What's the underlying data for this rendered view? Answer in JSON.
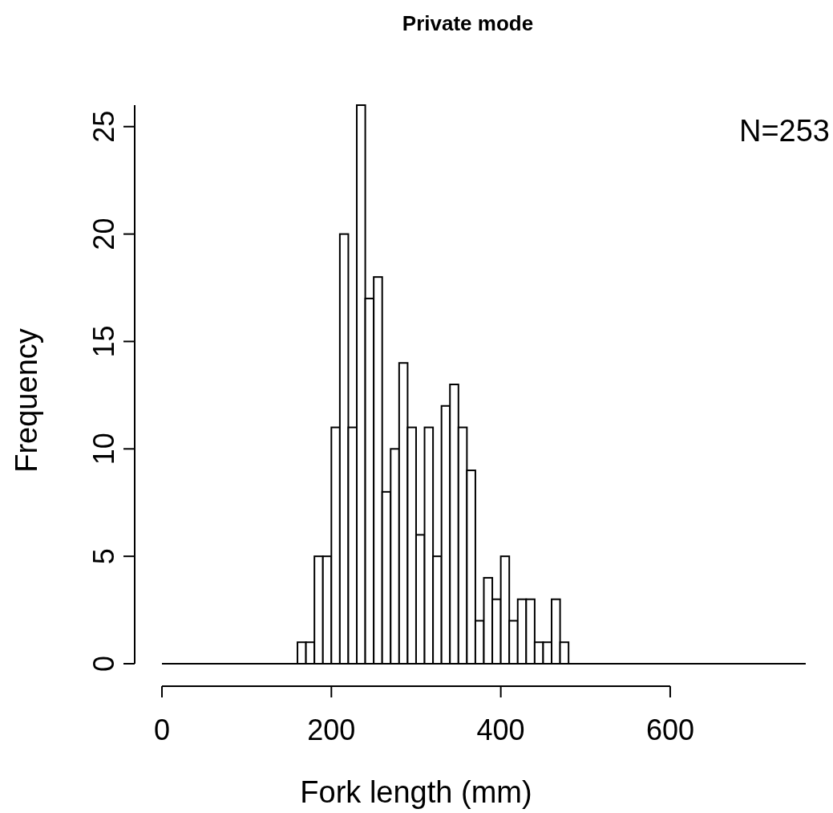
{
  "chart_data": {
    "type": "histogram",
    "title": "Private mode",
    "xlabel": "Fork length (mm)",
    "ylabel": "Frequency",
    "bins": [
      160,
      170,
      180,
      190,
      200,
      210,
      220,
      230,
      240,
      250,
      260,
      270,
      280,
      290,
      300,
      310,
      320,
      330,
      340,
      350,
      360,
      370,
      380,
      390,
      400,
      410,
      420,
      430,
      440,
      450,
      460,
      470,
      480
    ],
    "values": [
      1,
      1,
      5,
      5,
      11,
      20,
      11,
      26,
      17,
      18,
      8,
      10,
      14,
      11,
      6,
      11,
      5,
      12,
      13,
      11,
      9,
      2,
      4,
      3,
      5,
      2,
      3,
      3,
      1,
      1,
      3,
      1
    ],
    "color": "#ffffff",
    "xlim": [
      0,
      760
    ],
    "xticks": [
      0,
      200,
      400,
      600
    ],
    "ylim": [
      0,
      26
    ],
    "yticks": [
      0,
      5,
      10,
      15,
      20,
      25
    ],
    "ref_lines": [
      {
        "axis": "y",
        "value": 0
      }
    ],
    "annotations": [
      "N=253"
    ],
    "grid": false
  }
}
